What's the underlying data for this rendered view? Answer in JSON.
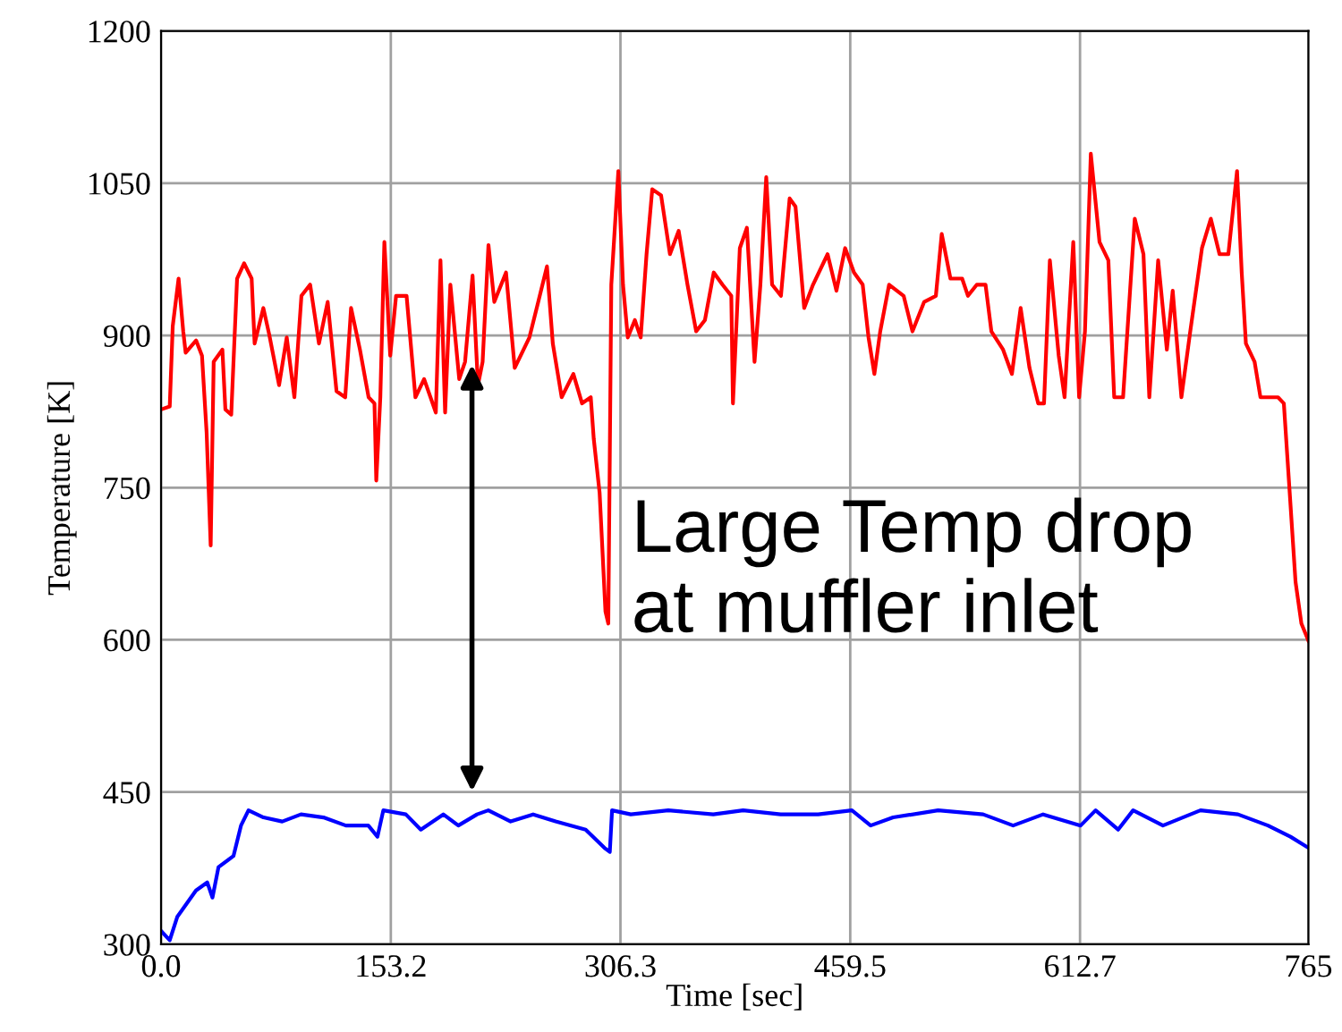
{
  "chart_data": {
    "type": "line",
    "xlabel": "Time [sec]",
    "ylabel": "Temperature [K]",
    "xlim": [
      0,
      765
    ],
    "ylim": [
      300,
      1200
    ],
    "xticks": [
      {
        "value": 0,
        "label": "0.0"
      },
      153.2,
      306.3,
      459.5,
      612.7,
      765
    ],
    "yticks": [
      300,
      450,
      600,
      750,
      900,
      1050,
      1200
    ],
    "grid": true,
    "line_style": "solid",
    "annotations": [
      "Large Temp drop\nat muffler inlet"
    ],
    "series": [
      {
        "color": "#ff0000",
        "x": [
          0,
          5.8,
          7.8,
          11.7,
          14.8,
          16.4,
          23.4,
          27.3,
          30.4,
          33.1,
          35.1,
          40.9,
          42.9,
          46.8,
          50.7,
          55.4,
          60.4,
          62.4,
          68.2,
          72.1,
          78.7,
          83.8,
          88.9,
          93.6,
          99.4,
          105.3,
          111.1,
          117.0,
          122.8,
          126.7,
          132.6,
          138.4,
          142.3,
          143.5,
          146.2,
          148.9,
          152.8,
          156.7,
          163.7,
          169.6,
          175.4,
          183.2,
          186.3,
          189.4,
          192.9,
          198.8,
          202.7,
          207.7,
          211.3,
          214.4,
          218.3,
          222.2,
          230.0,
          235.8,
          245.6,
          251.5,
          257.3,
          261.2,
          267.1,
          274.9,
          280.7,
          286.5,
          288.5,
          292.4,
          296.3,
          298.2,
          300.2,
          304.9,
          308.0,
          311.2,
          315.9,
          319.8,
          323.7,
          327.5,
          333.4,
          339.3,
          345.1,
          351.0,
          356.8,
          362.6,
          368.5,
          374.3,
          380.2,
          381.3,
          385.9,
          390.6,
          395.7,
          399.6,
          403.5,
          407.4,
          413.3,
          419.1,
          423.0,
          428.8,
          434.7,
          444.4,
          450.3,
          456.1,
          462.0,
          467.8,
          471.7,
          475.6,
          479.5,
          485.4,
          495.1,
          501.0,
          508.8,
          516.6,
          520.5,
          526.3,
          534.1,
          538.0,
          543.9,
          549.7,
          553.6,
          561.4,
          567.3,
          573.1,
          579.0,
          584.8,
          588.7,
          592.6,
          598.5,
          602.4,
          608.2,
          612.1,
          616.0,
          619.9,
          625.7,
          631.6,
          635.5,
          641.4,
          649.2,
          655.0,
          658.9,
          664.8,
          670.6,
          674.5,
          680.3,
          686.2,
          694.0,
          699.9,
          705.7,
          711.6,
          717.4,
          720.5,
          723.3,
          729.1,
          733.0,
          744.7,
          748.6,
          752.5,
          756.4,
          760.3,
          765.0
        ],
        "values": [
          827,
          830,
          909,
          956,
          904,
          883,
          895,
          880,
          804,
          693,
          874,
          886,
          827,
          822,
          956,
          971,
          956,
          892,
          927,
          901,
          851,
          898,
          839,
          939,
          950,
          892,
          933,
          845,
          839,
          927,
          886,
          839,
          833,
          757,
          839,
          992,
          880,
          939,
          939,
          839,
          857,
          824,
          974,
          824,
          950,
          857,
          874,
          959,
          851,
          874,
          989,
          933,
          962,
          868,
          898,
          933,
          968,
          892,
          839,
          862,
          833,
          839,
          798,
          745,
          628,
          616,
          950,
          1062,
          950,
          898,
          915,
          898,
          980,
          1044,
          1038,
          980,
          1003,
          950,
          904,
          915,
          962,
          950,
          939,
          833,
          986,
          1006,
          874,
          950,
          1056,
          950,
          939,
          1035,
          1027,
          927,
          950,
          980,
          944,
          986,
          962,
          950,
          898,
          862,
          904,
          950,
          939,
          904,
          933,
          939,
          1000,
          956,
          956,
          939,
          950,
          950,
          904,
          886,
          862,
          927,
          868,
          833,
          833,
          974,
          880,
          839,
          992,
          839,
          904,
          1079,
          992,
          974,
          839,
          839,
          1015,
          980,
          839,
          974,
          886,
          944,
          839,
          904,
          986,
          1015,
          980,
          980,
          1062,
          962,
          892,
          874,
          839,
          839,
          833,
          745,
          657,
          616,
          599
        ]
      },
      {
        "color": "#0000ff",
        "x": [
          0.8,
          5.8,
          10.8,
          23.3,
          30.8,
          34.3,
          38.3,
          48.3,
          53.3,
          58.3,
          68.3,
          80.8,
          93.3,
          108.3,
          123.2,
          138.2,
          144.3,
          148.2,
          163.2,
          173.2,
          188.2,
          198.2,
          210.7,
          218.2,
          233.1,
          248.1,
          263.1,
          283.1,
          295.6,
          299.2,
          300.7,
          313.2,
          338.2,
          368.2,
          388.1,
          413.1,
          438.1,
          460.6,
          473.1,
          488.1,
          518.1,
          548.1,
          568.1,
          588.1,
          613.1,
          623.1,
          638.1,
          648.1,
          668.0,
          693.0,
          718.0,
          738.0,
          753.0,
          765.0
        ],
        "values": [
          312,
          304,
          327,
          353,
          361,
          346,
          376,
          387,
          417,
          432,
          425,
          421,
          428,
          425,
          417,
          417,
          406,
          432,
          428,
          413,
          428,
          417,
          428,
          432,
          421,
          428,
          421,
          413,
          395,
          391,
          432,
          428,
          432,
          428,
          432,
          428,
          428,
          432,
          417,
          425,
          432,
          428,
          417,
          428,
          417,
          432,
          413,
          432,
          417,
          432,
          428,
          417,
          406,
          395
        ]
      }
    ]
  }
}
